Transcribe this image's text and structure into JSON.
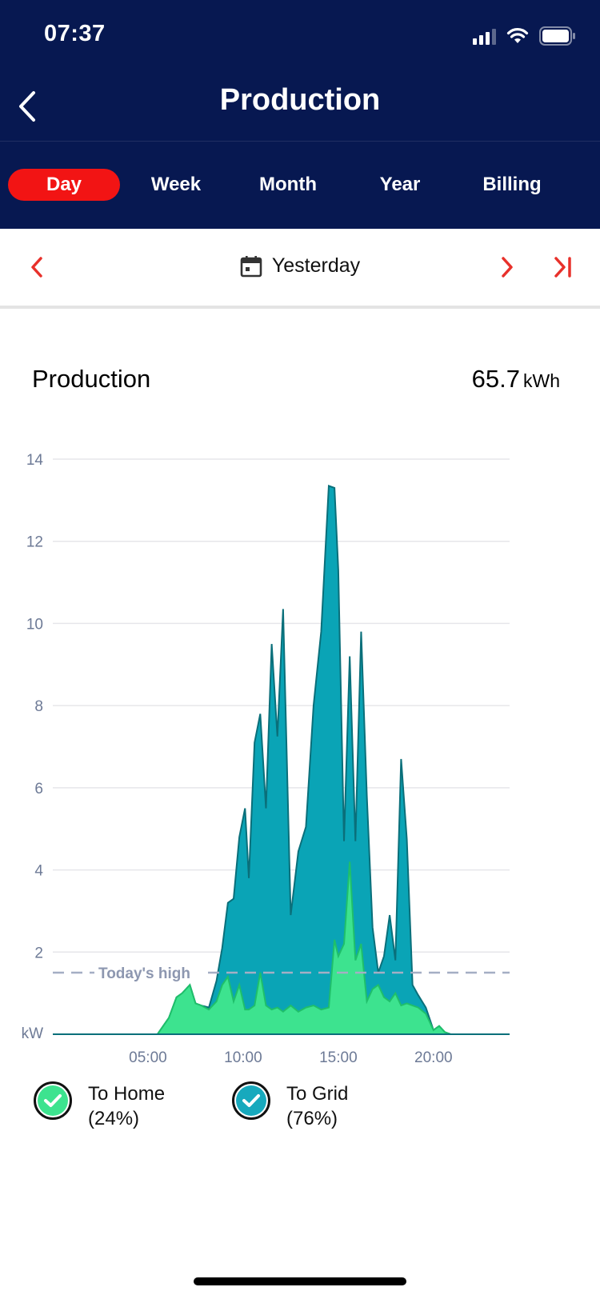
{
  "status_bar": {
    "time": "07:37"
  },
  "header": {
    "title": "Production"
  },
  "tabs": [
    {
      "label": "Day",
      "active": true
    },
    {
      "label": "Week",
      "active": false
    },
    {
      "label": "Month",
      "active": false
    },
    {
      "label": "Year",
      "active": false
    },
    {
      "label": "Billing",
      "active": false
    }
  ],
  "date_nav": {
    "label": "Yesterday"
  },
  "summary": {
    "title": "Production",
    "total": "65.7",
    "unit": "kWh"
  },
  "legend": [
    {
      "label_line1": "To Home",
      "label_line2": "(24%)",
      "color": "#3de38f"
    },
    {
      "label_line1": "To Grid",
      "label_line2": "(76%)",
      "color": "#17a9bd"
    }
  ],
  "colors": {
    "header_bg": "#071851",
    "active_tab": "#f21414",
    "accent_red": "#e8312b",
    "home_fill": "#3de38f",
    "grid_fill": "#0aa4b6"
  },
  "chart_data": {
    "type": "area",
    "stacked": true,
    "ylabel": "kW",
    "ylim": [
      0,
      14
    ],
    "y_ticks": [
      2,
      4,
      6,
      8,
      10,
      12,
      14
    ],
    "xlim": [
      0,
      24
    ],
    "x_ticks": [
      "05:00",
      "10:00",
      "15:00",
      "20:00"
    ],
    "x_tick_values": [
      5,
      10,
      15,
      20
    ],
    "reference_line": {
      "label": "Today's high",
      "value": 1.5
    },
    "series": [
      {
        "name": "To Home",
        "color": "#3de38f",
        "x": [
          0,
          5.5,
          6.1,
          6.5,
          6.8,
          7.2,
          7.5,
          7.8,
          8.2,
          8.6,
          8.9,
          9.2,
          9.5,
          9.8,
          10.1,
          10.3,
          10.6,
          10.9,
          11.2,
          11.5,
          11.8,
          12.1,
          12.5,
          12.9,
          13.3,
          13.7,
          14.1,
          14.5,
          14.8,
          15.0,
          15.3,
          15.6,
          15.9,
          16.2,
          16.5,
          16.8,
          17.1,
          17.4,
          17.7,
          18.0,
          18.3,
          18.6,
          18.9,
          19.2,
          19.6,
          20.0,
          20.3,
          20.6,
          20.9,
          21.2,
          24
        ],
        "y": [
          0,
          0,
          0.4,
          0.9,
          1.0,
          1.2,
          0.75,
          0.7,
          0.6,
          0.8,
          1.2,
          1.4,
          0.8,
          1.2,
          0.6,
          0.6,
          0.7,
          1.5,
          0.7,
          0.6,
          0.65,
          0.55,
          0.7,
          0.55,
          0.65,
          0.7,
          0.6,
          0.65,
          2.3,
          1.9,
          2.2,
          4.2,
          1.8,
          2.2,
          0.8,
          1.1,
          1.2,
          0.9,
          0.8,
          1.0,
          0.7,
          0.75,
          0.7,
          0.65,
          0.5,
          0.1,
          0.2,
          0.05,
          0,
          0,
          0
        ]
      },
      {
        "name": "To Grid",
        "color": "#0aa4b6",
        "x": [
          0,
          5.5,
          6.1,
          6.5,
          6.8,
          7.2,
          7.5,
          7.8,
          8.2,
          8.6,
          8.9,
          9.2,
          9.5,
          9.8,
          10.1,
          10.3,
          10.6,
          10.9,
          11.2,
          11.5,
          11.8,
          12.1,
          12.5,
          12.9,
          13.3,
          13.7,
          14.1,
          14.5,
          14.8,
          15.0,
          15.3,
          15.6,
          15.9,
          16.2,
          16.5,
          16.8,
          17.1,
          17.4,
          17.7,
          18.0,
          18.3,
          18.6,
          18.9,
          19.2,
          19.6,
          20.0,
          20.3,
          20.6,
          20.9,
          21.2,
          24
        ],
        "y": [
          0,
          0,
          0,
          0,
          0,
          0,
          0,
          0,
          0.05,
          0.5,
          0.9,
          1.8,
          2.5,
          3.6,
          4.9,
          3.2,
          6.4,
          6.3,
          4.8,
          8.9,
          6.6,
          9.8,
          2.2,
          3.9,
          4.4,
          7.3,
          9.2,
          12.7,
          11.0,
          9.4,
          2.5,
          5.0,
          2.9,
          7.6,
          5.0,
          1.5,
          0.3,
          1.0,
          2.1,
          0.8,
          6.0,
          4.0,
          0.5,
          0.3,
          0.15,
          0,
          0,
          0,
          0,
          0,
          0
        ]
      }
    ]
  }
}
